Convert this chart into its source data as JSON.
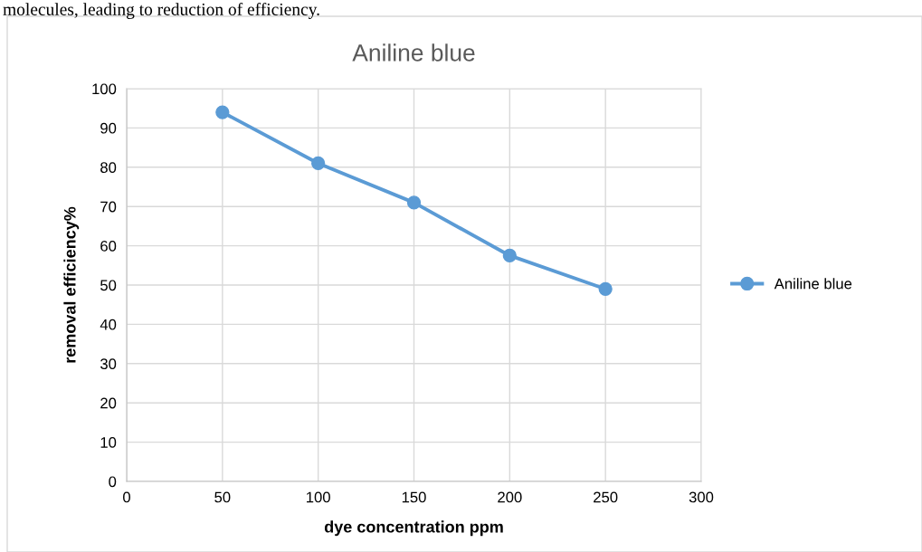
{
  "chart_data": {
    "type": "line",
    "title": "Aniline blue",
    "xlabel": "dye concentration ppm",
    "ylabel": "removal efficiency%",
    "annotations": [
      "molecules, leading to reduction of efficiency."
    ],
    "x": [
      50,
      100,
      150,
      200,
      250
    ],
    "series": [
      {
        "name": "Aniline blue",
        "color": "#5b9bd5",
        "values": [
          94,
          81,
          71,
          57.5,
          49
        ]
      }
    ],
    "xlim": [
      0,
      300
    ],
    "xticks": [
      0,
      50,
      100,
      150,
      200,
      250,
      300
    ],
    "ylim": [
      0,
      100
    ],
    "yticks": [
      0,
      10,
      20,
      30,
      40,
      50,
      60,
      70,
      80,
      90,
      100
    ],
    "grid": true,
    "legend": "right",
    "marker": "circle",
    "line_style": "solid"
  }
}
